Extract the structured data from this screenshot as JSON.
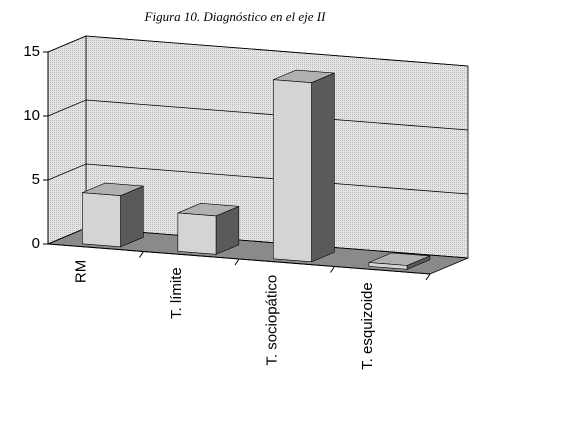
{
  "chart_data": {
    "type": "bar3d",
    "title": "Figura 10. Diagnóstico en el eje II",
    "categories": [
      "RM",
      "T. límite",
      "T. sociopático",
      "T. esquizoide"
    ],
    "values": [
      4,
      3,
      14,
      0.3
    ],
    "color": "#d4d4d4",
    "ylim": [
      0,
      15
    ],
    "yticks": [
      0,
      5,
      10,
      15
    ],
    "grid": true
  }
}
